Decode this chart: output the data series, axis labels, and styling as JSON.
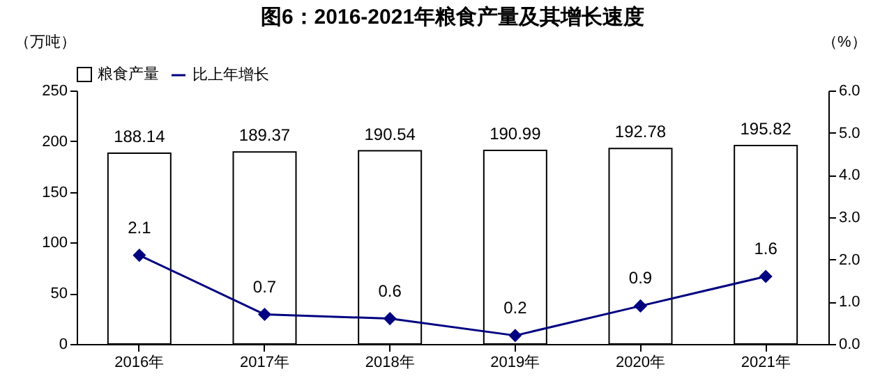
{
  "chart_data": {
    "type": "bar",
    "title": "图6：2016-2021年粮食产量及其增长速度",
    "ylabel": "（万吨）",
    "y2label": "（%）",
    "categories": [
      "2016年",
      "2017年",
      "2018年",
      "2019年",
      "2020年",
      "2021年"
    ],
    "series": [
      {
        "name": "粮食产量",
        "color": "#ffffff",
        "values": [
          188.14,
          189.37,
          190.54,
          190.99,
          192.78,
          195.82
        ]
      },
      {
        "name": "比上年增长",
        "type": "line",
        "axis": "y2",
        "color": "#000080",
        "values": [
          2.1,
          0.7,
          0.6,
          0.2,
          0.9,
          1.6
        ]
      }
    ],
    "ylim": [
      0,
      250
    ],
    "yticks": [
      0,
      50,
      100,
      150,
      200,
      250
    ],
    "y2lim": [
      0,
      6
    ],
    "y2ticks": [
      {
        "value": 0,
        "label": "0.0"
      },
      {
        "value": 1,
        "label": "1.0"
      },
      {
        "value": 2,
        "label": "2.0"
      },
      {
        "value": 3,
        "label": "3.0"
      },
      {
        "value": 4,
        "label": "4.0"
      },
      {
        "value": 5,
        "label": "5.0"
      },
      {
        "value": 6,
        "label": "6.0"
      }
    ],
    "data_labels": true,
    "legend": "top",
    "marker": "diamond",
    "grid": false
  }
}
